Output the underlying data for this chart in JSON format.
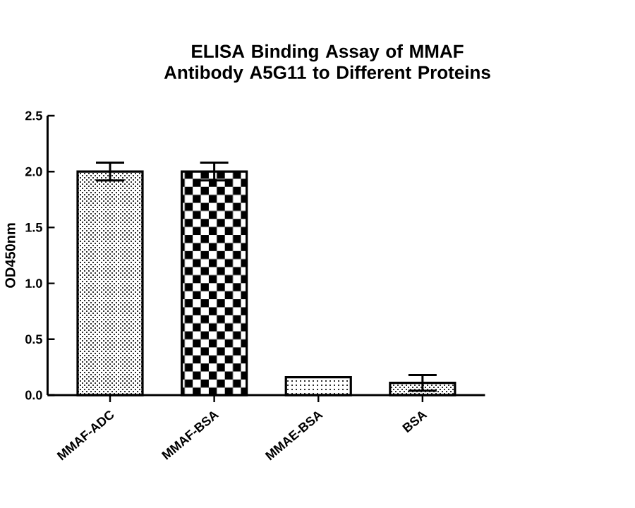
{
  "chart_data": {
    "type": "bar",
    "title": "ELISA Binding Assay of MMAF Antibody A5G11 to Different Proteins",
    "ylabel": "OD450nm",
    "categories": [
      "MMAF-ADC",
      "MMAF-BSA",
      "MMAE-BSA",
      "BSA"
    ],
    "values": [
      2.0,
      2.0,
      0.16,
      0.11
    ],
    "errors": [
      0.08,
      0.08,
      null,
      0.07
    ],
    "color": "#000000",
    "ylim": [
      0,
      2.5
    ],
    "yticks": [
      {
        "value": 0,
        "label": "0.0"
      },
      0.5,
      {
        "value": 1,
        "label": "1.0"
      },
      1.5,
      {
        "value": 2,
        "label": "2.0"
      },
      2.5
    ],
    "grid": false
  }
}
